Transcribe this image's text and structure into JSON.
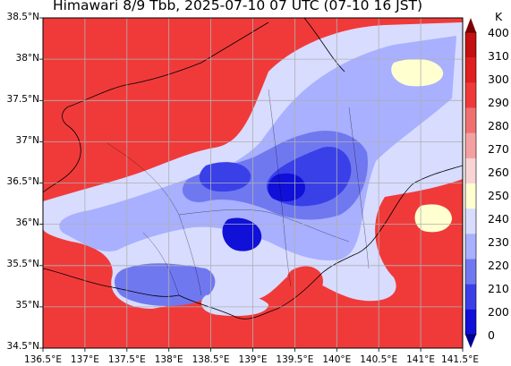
{
  "title": "Himawari 8/9 Tbb, 2025-07-10 07 UTC (07-10 16 JST)",
  "map": {
    "lon_range": [
      136.5,
      141.5
    ],
    "lat_range": [
      34.5,
      38.5
    ],
    "gridlines": true,
    "x_ticks": [
      "136.5°E",
      "137°E",
      "137.5°E",
      "138°E",
      "138.5°E",
      "139°E",
      "139.5°E",
      "140°E",
      "140.5°E",
      "141°E",
      "141.5°E"
    ],
    "y_ticks": [
      "38.5°N",
      "38°N",
      "37.5°N",
      "37°N",
      "36.5°N",
      "36°N",
      "35.5°N",
      "35°N",
      "34.5°N"
    ]
  },
  "colorbar": {
    "unit": "K",
    "levels": [
      "400",
      "310",
      "300",
      "290",
      "280",
      "270",
      "260",
      "250",
      "240",
      "230",
      "220",
      "210",
      "200",
      "0"
    ],
    "colors": [
      "#7f0000",
      "#c41010",
      "#e02020",
      "#f03a3a",
      "#f07070",
      "#f4a0a0",
      "#f8d4d4",
      "#ffffd0",
      "#d8dcff",
      "#a8b0ff",
      "#7078f0",
      "#3a40e8",
      "#1010d8",
      "#000090"
    ],
    "extend": "both"
  }
}
